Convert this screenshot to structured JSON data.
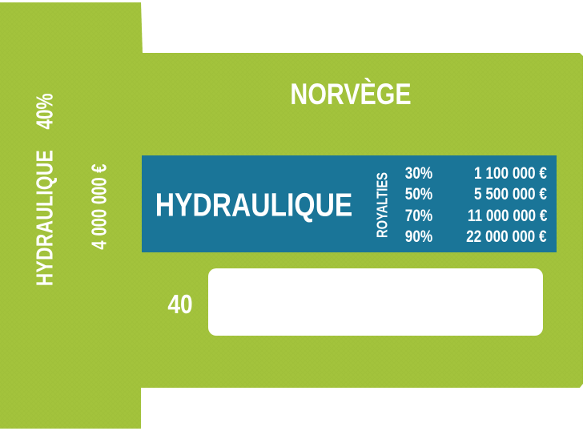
{
  "card": {
    "country": "NORVÈGE",
    "side": {
      "title": "HYDRAULIQUE",
      "percent": "40%",
      "price": "4 000 000 €"
    },
    "main_title": "HYDRAULIQUE",
    "royalties": {
      "label": "ROYALTIES",
      "rows": [
        {
          "pct": "30%",
          "amount": "1 100 000 €"
        },
        {
          "pct": "50%",
          "amount": "5 500 000 €"
        },
        {
          "pct": "70%",
          "amount": "11 000 000 €"
        },
        {
          "pct": "90%",
          "amount": "22 000 000 €"
        }
      ]
    },
    "cost": "40",
    "colors": {
      "card_green": "#a3c33c",
      "panel_blue": "#1a7598",
      "text": "#ffffff"
    }
  }
}
